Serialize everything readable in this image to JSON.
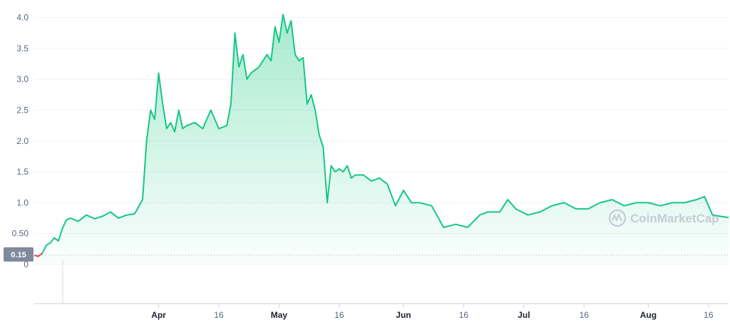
{
  "chart_data": {
    "type": "area",
    "title": "",
    "xlabel": "",
    "ylabel": "",
    "ylim": [
      0,
      4.1
    ],
    "y_ticks": [
      {
        "value": 4.0,
        "label": "4.0"
      },
      {
        "value": 3.5,
        "label": "3.5"
      },
      {
        "value": 3.0,
        "label": "3.0"
      },
      {
        "value": 2.5,
        "label": "2.5"
      },
      {
        "value": 2.0,
        "label": "2.0"
      },
      {
        "value": 1.5,
        "label": "1.5"
      },
      {
        "value": 1.0,
        "label": "1.0"
      },
      {
        "value": 0.5,
        "label": "0.50"
      },
      {
        "value": 0,
        "label": "0"
      }
    ],
    "xlim": [
      "2021-03-01",
      "2021-08-21"
    ],
    "x_ticks": [
      {
        "date": "2021-04-01",
        "label": "Apr",
        "month": true
      },
      {
        "date": "2021-04-16",
        "label": "16",
        "month": false
      },
      {
        "date": "2021-05-01",
        "label": "May",
        "month": true
      },
      {
        "date": "2021-05-16",
        "label": "16",
        "month": false
      },
      {
        "date": "2021-06-01",
        "label": "Jun",
        "month": true
      },
      {
        "date": "2021-06-16",
        "label": "16",
        "month": false
      },
      {
        "date": "2021-07-01",
        "label": "Jul",
        "month": true
      },
      {
        "date": "2021-07-16",
        "label": "16",
        "month": false
      },
      {
        "date": "2021-08-01",
        "label": "Aug",
        "month": true
      },
      {
        "date": "2021-08-16",
        "label": "16",
        "month": false
      }
    ],
    "reference_line": {
      "value": 0.15,
      "label": "0.15"
    },
    "grid": true,
    "watermark": "CoinMarketCap",
    "colors": {
      "line": "#16c784",
      "fill_top": "#16c784",
      "start_segment": "#ea3943",
      "badge": "#808a9d"
    },
    "series": [
      {
        "x": [
          "2021-03-01",
          "2021-03-02",
          "2021-03-03",
          "2021-03-04",
          "2021-03-05",
          "2021-03-06",
          "2021-03-07",
          "2021-03-08",
          "2021-03-09",
          "2021-03-10",
          "2021-03-12",
          "2021-03-14",
          "2021-03-16",
          "2021-03-18",
          "2021-03-20",
          "2021-03-22",
          "2021-03-24",
          "2021-03-26",
          "2021-03-28",
          "2021-03-29",
          "2021-03-30",
          "2021-03-31",
          "2021-04-01",
          "2021-04-02",
          "2021-04-03",
          "2021-04-04",
          "2021-04-05",
          "2021-04-06",
          "2021-04-07",
          "2021-04-08",
          "2021-04-10",
          "2021-04-12",
          "2021-04-14",
          "2021-04-16",
          "2021-04-18",
          "2021-04-19",
          "2021-04-20",
          "2021-04-21",
          "2021-04-22",
          "2021-04-23",
          "2021-04-24",
          "2021-04-26",
          "2021-04-28",
          "2021-04-29",
          "2021-04-30",
          "2021-05-01",
          "2021-05-02",
          "2021-05-03",
          "2021-05-04",
          "2021-05-05",
          "2021-05-06",
          "2021-05-07",
          "2021-05-08",
          "2021-05-09",
          "2021-05-10",
          "2021-05-11",
          "2021-05-12",
          "2021-05-13",
          "2021-05-14",
          "2021-05-15",
          "2021-05-16",
          "2021-05-17",
          "2021-05-18",
          "2021-05-19",
          "2021-05-20",
          "2021-05-22",
          "2021-05-24",
          "2021-05-26",
          "2021-05-28",
          "2021-05-30",
          "2021-06-01",
          "2021-06-03",
          "2021-06-05",
          "2021-06-08",
          "2021-06-11",
          "2021-06-14",
          "2021-06-17",
          "2021-06-20",
          "2021-06-22",
          "2021-06-25",
          "2021-06-27",
          "2021-06-29",
          "2021-07-02",
          "2021-07-05",
          "2021-07-08",
          "2021-07-11",
          "2021-07-14",
          "2021-07-17",
          "2021-07-20",
          "2021-07-23",
          "2021-07-26",
          "2021-07-29",
          "2021-08-01",
          "2021-08-04",
          "2021-08-07",
          "2021-08-10",
          "2021-08-13",
          "2021-08-15",
          "2021-08-17",
          "2021-08-19",
          "2021-08-21"
        ],
        "y": [
          0.15,
          0.13,
          0.18,
          0.31,
          0.35,
          0.43,
          0.38,
          0.58,
          0.72,
          0.75,
          0.7,
          0.8,
          0.74,
          0.78,
          0.85,
          0.75,
          0.8,
          0.82,
          1.05,
          2.0,
          2.5,
          2.35,
          3.1,
          2.6,
          2.2,
          2.3,
          2.15,
          2.5,
          2.2,
          2.25,
          2.3,
          2.2,
          2.5,
          2.2,
          2.25,
          2.6,
          3.75,
          3.2,
          3.4,
          3.0,
          3.1,
          3.2,
          3.4,
          3.3,
          3.85,
          3.6,
          4.05,
          3.75,
          3.95,
          3.4,
          3.3,
          3.35,
          2.6,
          2.75,
          2.5,
          2.1,
          1.9,
          1.0,
          1.6,
          1.5,
          1.55,
          1.5,
          1.6,
          1.4,
          1.45,
          1.45,
          1.35,
          1.4,
          1.3,
          0.95,
          1.2,
          1.0,
          1.0,
          0.95,
          0.6,
          0.65,
          0.6,
          0.8,
          0.85,
          0.85,
          1.05,
          0.9,
          0.8,
          0.85,
          0.95,
          1.0,
          0.9,
          0.9,
          1.0,
          1.05,
          0.95,
          1.0,
          1.0,
          0.95,
          1.0,
          1.0,
          1.05,
          1.1,
          0.8,
          0.78,
          0.76
        ]
      }
    ]
  }
}
